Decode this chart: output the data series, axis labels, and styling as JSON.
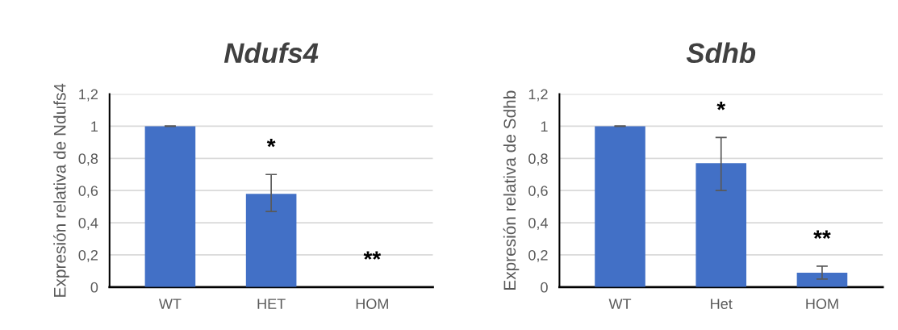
{
  "chart_data": [
    {
      "type": "bar",
      "title": "Ndufs4",
      "ylabel": "Expresión relativa de Ndufs4",
      "categories": [
        "WT",
        "HET",
        "HOM"
      ],
      "values": [
        1,
        0.58,
        0
      ],
      "errors": [
        0,
        [
          0.47,
          0.7
        ],
        null
      ],
      "color": "#4270c6",
      "ylim": [
        0,
        1.2
      ],
      "yticks": [
        {
          "value": 0,
          "label": "0"
        },
        {
          "value": 0.2,
          "label": "0,2"
        },
        {
          "value": 0.4,
          "label": "0,4"
        },
        {
          "value": 0.6,
          "label": "0,6"
        },
        {
          "value": 0.8,
          "label": "0,8"
        },
        {
          "value": 1,
          "label": "1"
        },
        {
          "value": 1.2,
          "label": "1,2"
        }
      ],
      "grid": "y",
      "annotations": [
        "*",
        "**"
      ]
    },
    {
      "type": "bar",
      "title": "Sdhb",
      "ylabel": "Expresión relativa de Sdhb",
      "categories": [
        "WT",
        "Het",
        "HOM"
      ],
      "values": [
        1,
        0.77,
        0.09
      ],
      "errors": [
        0,
        [
          0.6,
          0.93
        ],
        [
          0.05,
          0.13
        ]
      ],
      "color": "#4270c6",
      "ylim": [
        0,
        1.2
      ],
      "yticks": [
        {
          "value": 0,
          "label": "0"
        },
        {
          "value": 0.2,
          "label": "0,2"
        },
        {
          "value": 0.4,
          "label": "0,4"
        },
        {
          "value": 0.6,
          "label": "0,6"
        },
        {
          "value": 0.8,
          "label": "0,8"
        },
        {
          "value": 1,
          "label": "1"
        },
        {
          "value": 1.2,
          "label": "1,2"
        }
      ],
      "grid": "y",
      "annotations": [
        "*",
        "**"
      ]
    }
  ]
}
